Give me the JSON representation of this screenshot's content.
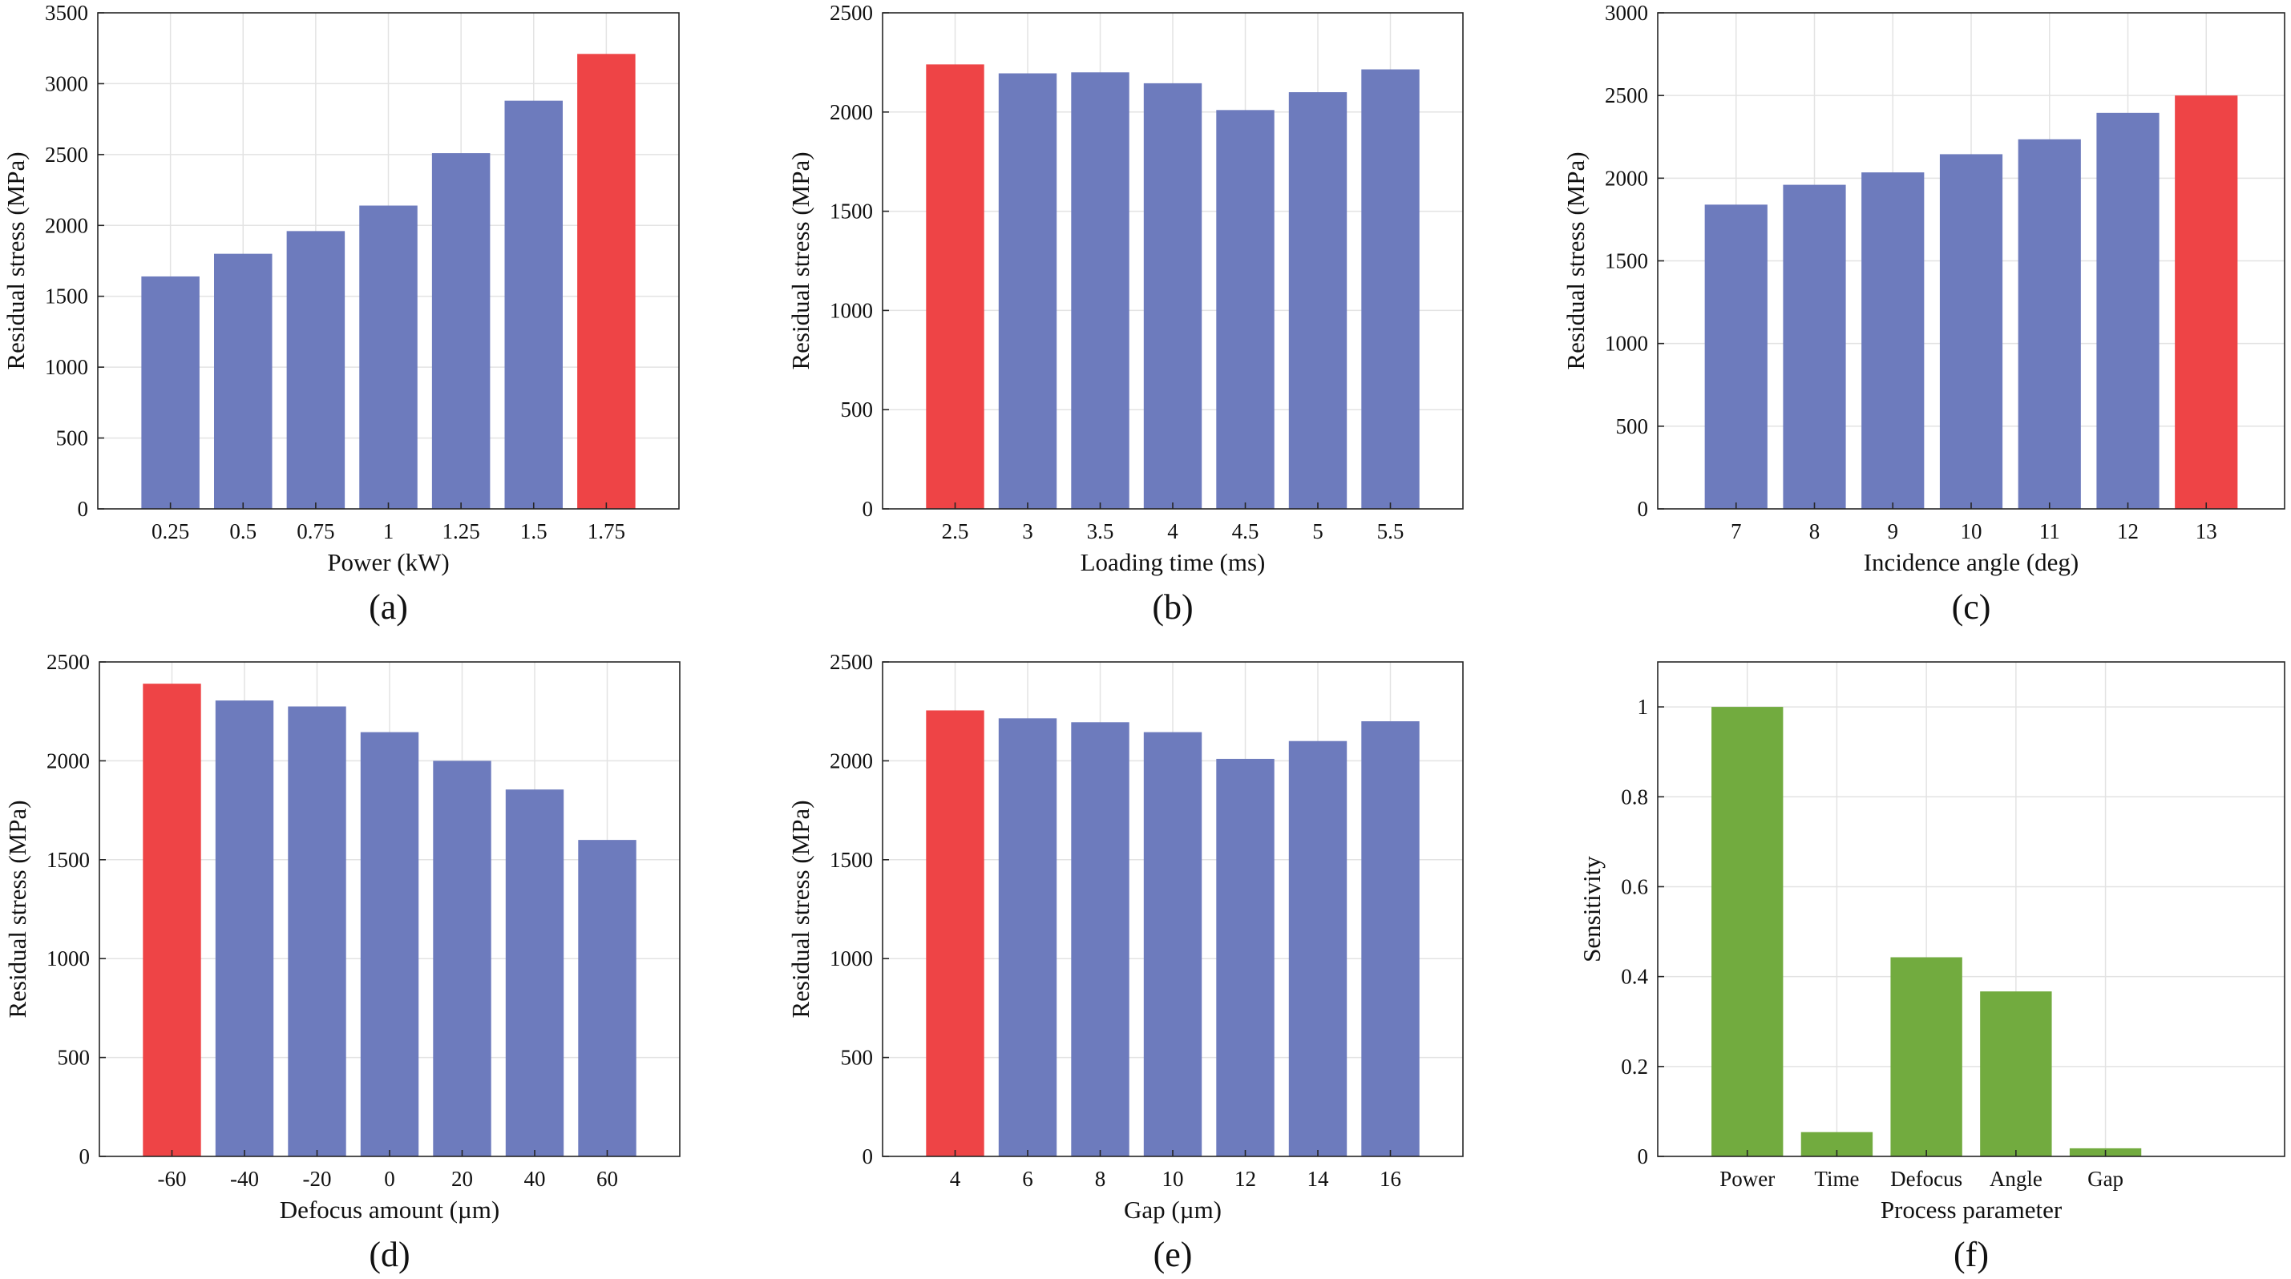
{
  "colors": {
    "highlight": "#ee4446",
    "bar": "#6d7bbd",
    "sensitivity": "#72ab3f",
    "grid": "#e3e3e3",
    "axis": "#262626"
  },
  "chart_data": [
    {
      "type": "bar",
      "panel_label": "(a)",
      "categories": [
        "0.25",
        "0.5",
        "0.75",
        "1",
        "1.25",
        "1.5",
        "1.75"
      ],
      "values": [
        1640,
        1800,
        1960,
        2140,
        2510,
        2880,
        3210
      ],
      "highlight_index": 6,
      "xlabel": "Power (kW)",
      "ylabel": "Residual stress (MPa)",
      "ylim": [
        0,
        3500
      ],
      "yticks": [
        "0",
        "500",
        "1000",
        "1500",
        "2000",
        "2500",
        "3000",
        "3500"
      ],
      "grid": true
    },
    {
      "type": "bar",
      "panel_label": "(b)",
      "categories": [
        "2.5",
        "3",
        "3.5",
        "4",
        "4.5",
        "5",
        "5.5"
      ],
      "values": [
        2240,
        2195,
        2200,
        2145,
        2010,
        2100,
        2215
      ],
      "highlight_index": 0,
      "xlabel": "Loading time (ms)",
      "ylabel": "Residual stress (MPa)",
      "ylim": [
        0,
        2500
      ],
      "yticks": [
        "0",
        "500",
        "1000",
        "1500",
        "2000",
        "2500"
      ],
      "grid": true
    },
    {
      "type": "bar",
      "panel_label": "(c)",
      "categories": [
        "7",
        "8",
        "9",
        "10",
        "11",
        "12",
        "13"
      ],
      "values": [
        1840,
        1960,
        2035,
        2145,
        2235,
        2395,
        2500
      ],
      "highlight_index": 6,
      "xlabel": "Incidence angle (deg)",
      "ylabel": "Residual stress (MPa)",
      "ylim": [
        0,
        3000
      ],
      "yticks": [
        "0",
        "500",
        "1000",
        "1500",
        "2000",
        "2500",
        "3000"
      ],
      "grid": true
    },
    {
      "type": "bar",
      "panel_label": "(d)",
      "categories": [
        "-60",
        "-40",
        "-20",
        "0",
        "20",
        "40",
        "60"
      ],
      "values": [
        2390,
        2305,
        2275,
        2145,
        2000,
        1855,
        1600
      ],
      "highlight_index": 0,
      "xlabel": "Defocus amount (µm)",
      "ylabel": "Residual stress (MPa)",
      "ylim": [
        0,
        2500
      ],
      "yticks": [
        "0",
        "500",
        "1000",
        "1500",
        "2000",
        "2500"
      ],
      "grid": true
    },
    {
      "type": "bar",
      "panel_label": "(e)",
      "categories": [
        "4",
        "6",
        "8",
        "10",
        "12",
        "14",
        "16"
      ],
      "values": [
        2255,
        2215,
        2195,
        2145,
        2010,
        2100,
        2200
      ],
      "highlight_index": 0,
      "xlabel": "Gap (µm)",
      "ylabel": "Residual stress (MPa)",
      "ylim": [
        0,
        2500
      ],
      "yticks": [
        "0",
        "500",
        "1000",
        "1500",
        "2000",
        "2500"
      ],
      "grid": true
    },
    {
      "type": "bar",
      "panel_label": "(f)",
      "categories": [
        "Power",
        "Time",
        "Defocus",
        "Angle",
        "Gap"
      ],
      "values": [
        1.0,
        0.054,
        0.443,
        0.367,
        0.018
      ],
      "highlight_index": -1,
      "xlabel": "Process parameter",
      "ylabel": "Sensitivity",
      "ylim": [
        0,
        1.1
      ],
      "yticks": [
        "0",
        "0.2",
        "0.4",
        "0.6",
        "0.8",
        "1"
      ],
      "ytick_values": [
        0,
        0.2,
        0.4,
        0.6,
        0.8,
        1.0
      ],
      "grid": true
    }
  ]
}
